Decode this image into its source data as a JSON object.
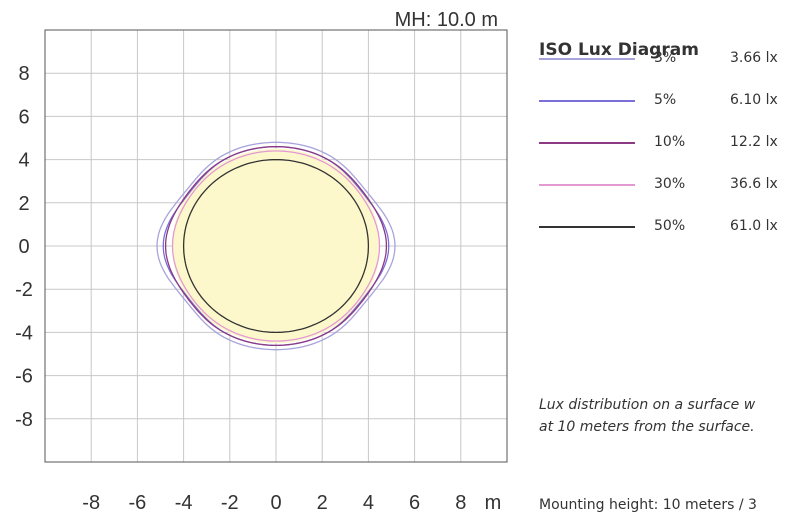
{
  "header": {
    "mh_label": "MH: 10.0 m"
  },
  "chart_data": {
    "type": "line",
    "title": "ISO Lux Diagram",
    "xlim": [
      -10,
      10
    ],
    "ylim": [
      -10,
      10
    ],
    "x_ticks": [
      "-8",
      "-6",
      "-4",
      "-2",
      "0",
      "2",
      "4",
      "6",
      "8"
    ],
    "x_unit": "m",
    "y_ticks": [
      "8",
      "6",
      "4",
      "2",
      "0",
      "-2",
      "-4",
      "-6",
      "-8"
    ],
    "grid": true,
    "fill_color": "#fdf8cc",
    "series": [
      {
        "name": "3%",
        "lux": "3.66 lx",
        "color": "#a7a4db",
        "radius": 4.8,
        "wave": 0.35
      },
      {
        "name": "5%",
        "lux": "6.10 lx",
        "color": "#7a6fd8",
        "radius": 4.6,
        "wave": 0.28
      },
      {
        "name": "10%",
        "lux": "12.2 lx",
        "color": "#8b3a84",
        "radius": 4.6,
        "wave": 0.18
      },
      {
        "name": "30%",
        "lux": "36.6 lx",
        "color": "#e39ad2",
        "radius": 4.4,
        "wave": 0.08
      },
      {
        "name": "50%",
        "lux": "61.0 lx",
        "color": "#333333",
        "radius": 4.0,
        "wave": 0.0
      }
    ]
  },
  "description": {
    "line1": "Lux distribution on a surface w",
    "line2": "at 10 meters from the surface."
  },
  "mounting": "Mounting height: 10 meters / 3"
}
